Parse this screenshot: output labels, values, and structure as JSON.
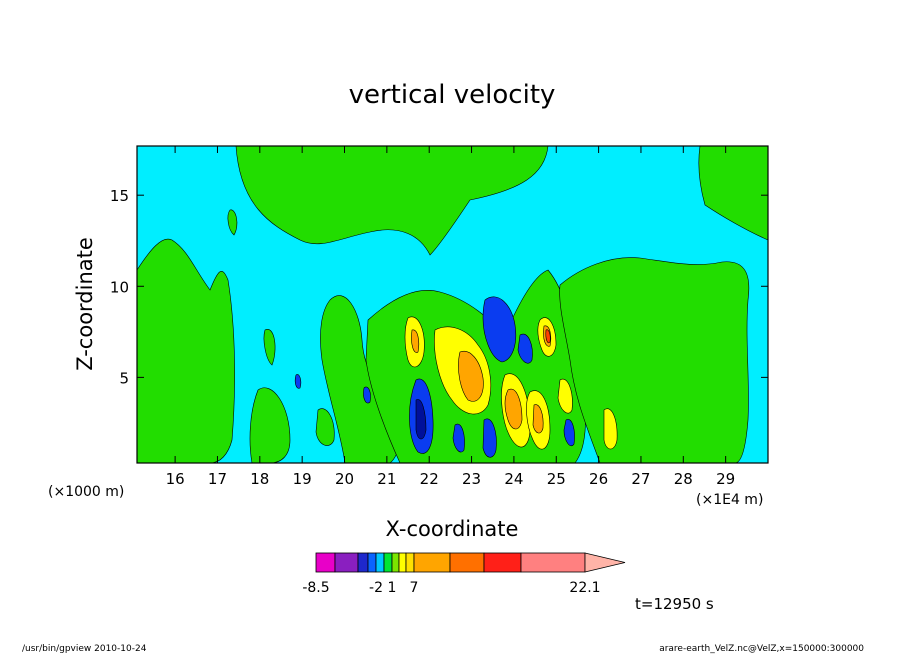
{
  "chart_data": {
    "type": "heatmap",
    "title": "vertical velocity",
    "xlabel": "X-coordinate",
    "ylabel": "Z-coordinate",
    "x_unit_label": "(×1E4 m)",
    "y_unit_label": "(×1000 m)",
    "xlim": [
      15.1,
      30.0
    ],
    "ylim": [
      0.3,
      17.7
    ],
    "x_ticks": [
      16,
      17,
      18,
      19,
      20,
      21,
      22,
      23,
      24,
      25,
      26,
      27,
      28,
      29
    ],
    "y_ticks": [
      5,
      10,
      15
    ],
    "background_level_color": "#00eeff",
    "colorbar": {
      "colors": [
        "#e800c8",
        "#8a1fc0",
        "#1e28cc",
        "#0a64ff",
        "#00c8ff",
        "#00e632",
        "#7be600",
        "#ffff00",
        "#ffe000",
        "#ffa500",
        "#ff7000",
        "#ff2018",
        "#ff8080",
        "#ffb4a8"
      ],
      "labels": [
        "-8.5",
        "-2",
        "1",
        "7",
        "22.1"
      ],
      "label_positions": [
        0,
        4,
        6,
        9,
        13
      ]
    },
    "time_label": "t=12950 s"
  },
  "footer": {
    "left": "/usr/bin/gpview   2010-10-24",
    "right": "arare-earth_VelZ.nc@VelZ,x=150000:300000"
  }
}
